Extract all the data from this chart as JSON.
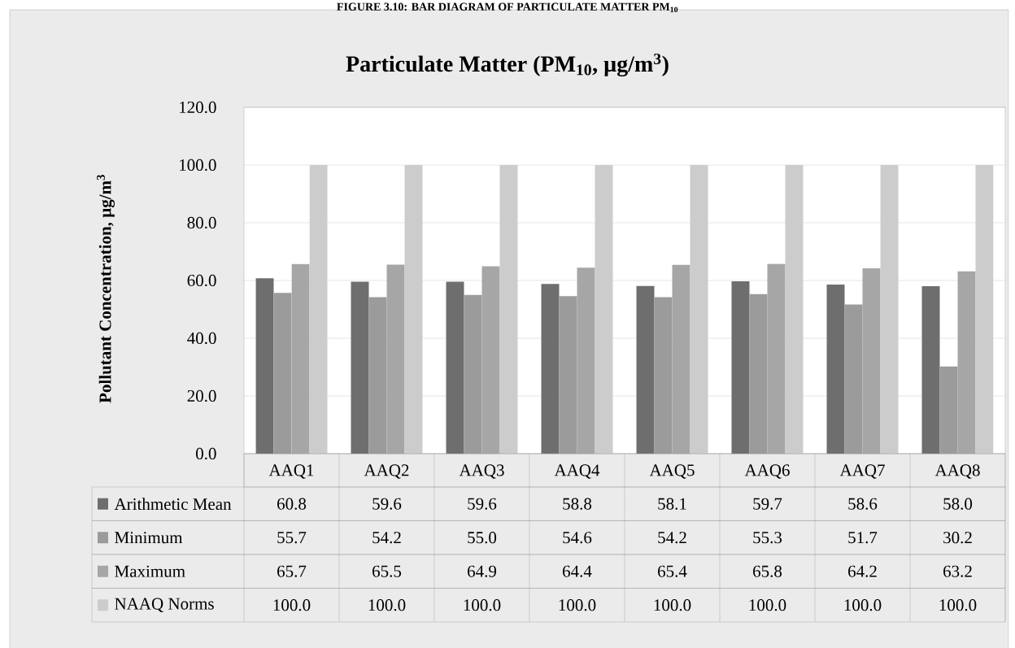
{
  "chart_data": {
    "type": "bar",
    "title": "Particulate Matter (PM$_{10}$, µg/m$^{3}$)",
    "ylabel": "Pollutant Concentration, µg/m$^{3}$",
    "annotations": [
      "FIGURE 3.10: BAR DIAGRAM OF PARTICULATE MATTER PM$_{10}$"
    ],
    "categories": [
      "AAQ1",
      "AAQ2",
      "AAQ3",
      "AAQ4",
      "AAQ5",
      "AAQ6",
      "AAQ7",
      "AAQ8"
    ],
    "series": [
      {
        "name": "Arithmetic Mean",
        "color": "#6e6e6e",
        "values": [
          60.8,
          59.6,
          59.6,
          58.8,
          58.1,
          59.7,
          58.6,
          58.0
        ],
        "value_labels": [
          "60.8",
          "59.6",
          "59.6",
          "58.8",
          "58.1",
          "59.7",
          "58.6",
          "58.0"
        ]
      },
      {
        "name": "Minimum",
        "color": "#9b9b9b",
        "values": [
          55.7,
          54.2,
          55.0,
          54.6,
          54.2,
          55.3,
          51.7,
          30.2
        ],
        "value_labels": [
          "55.7",
          "54.2",
          "55.0",
          "54.6",
          "54.2",
          "55.3",
          "51.7",
          "30.2"
        ]
      },
      {
        "name": "Maximum",
        "color": "#a6a6a6",
        "values": [
          65.7,
          65.5,
          64.9,
          64.4,
          65.4,
          65.8,
          64.2,
          63.2
        ],
        "value_labels": [
          "65.7",
          "65.5",
          "64.9",
          "64.4",
          "65.4",
          "65.8",
          "64.2",
          "63.2"
        ]
      },
      {
        "name": "NAAQ Norms",
        "color": "#cccccc",
        "values": [
          100.0,
          100.0,
          100.0,
          100.0,
          100.0,
          100.0,
          100.0,
          100.0
        ],
        "value_labels": [
          "100.0",
          "100.0",
          "100.0",
          "100.0",
          "100.0",
          "100.0",
          "100.0",
          "100.0"
        ]
      }
    ],
    "ylim": [
      0,
      120
    ],
    "yticks": [
      {
        "value": 0,
        "label": "0.0"
      },
      {
        "value": 20,
        "label": "20.0"
      },
      {
        "value": 40,
        "label": "40.0"
      },
      {
        "value": 60,
        "label": "60.0"
      },
      {
        "value": 80,
        "label": "80.0"
      },
      {
        "value": 100,
        "label": "100.0"
      },
      {
        "value": 120,
        "label": "120.0"
      }
    ],
    "grid": "y",
    "legend": "bottom"
  }
}
